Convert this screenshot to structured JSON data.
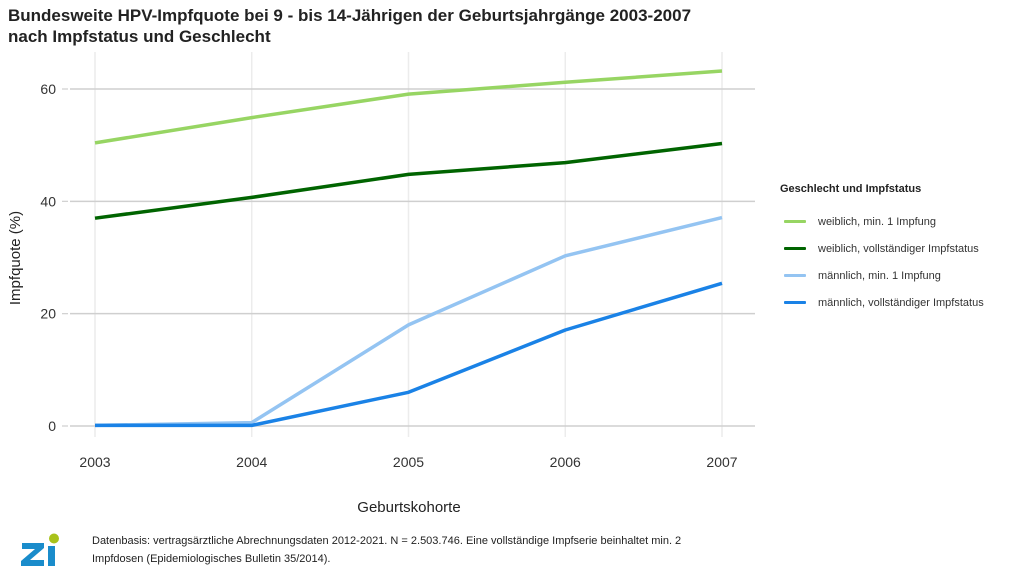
{
  "title": {
    "line1": "Bundesweite HPV-Impfquote bei 9 - bis 14-Jährigen der Geburtsjahrgänge 2003-2007",
    "line2": "nach Impfstatus und Geschlecht"
  },
  "legend": {
    "title": "Geschlecht und Impfstatus"
  },
  "footer": {
    "text": "Datenbasis: vertragsärztliche Abrechnungsdaten 2012-2021. N = 2.503.746. Eine vollständige Impfserie beinhaltet min. 2 Impfdosen (Epidemiologisches Bulletin 35/2014)."
  },
  "logo": {
    "name": "zi-logo",
    "text": "Zi",
    "colors": {
      "letters": "#1a8ccb",
      "dot": "#a9c21b"
    }
  },
  "chart_data": {
    "type": "line",
    "title": "Bundesweite HPV-Impfquote bei 9 - bis 14-Jährigen der Geburtsjahrgänge 2003-2007 nach Impfstatus und Geschlecht",
    "xlabel": "Geburtskohorte",
    "ylabel": "Impfquote (%)",
    "x": [
      2003,
      2004,
      2005,
      2006,
      2007
    ],
    "x_tick_labels": [
      "2003",
      "2004",
      "2005",
      "2006",
      "2007"
    ],
    "y_ticks": [
      0,
      20,
      40,
      60
    ],
    "y_tick_labels": [
      "0",
      "20",
      "40",
      "60"
    ],
    "xlim": [
      2002.85,
      2007.2
    ],
    "ylim": [
      -2,
      66
    ],
    "grid": true,
    "legend_position": "right",
    "series": [
      {
        "name": "weiblich, min. 1 Impfung",
        "color": "#97d563",
        "values": [
          50.4,
          54.9,
          59.1,
          61.2,
          63.2
        ]
      },
      {
        "name": "weiblich, vollständiger Impfstatus",
        "color": "#006400",
        "values": [
          37.0,
          40.7,
          44.8,
          46.9,
          50.3
        ]
      },
      {
        "name": "männlich, min. 1 Impfung",
        "color": "#94c4f2",
        "values": [
          0.1,
          0.6,
          18.0,
          30.3,
          37.1
        ]
      },
      {
        "name": "männlich, vollständiger Impfstatus",
        "color": "#1a82e6",
        "values": [
          0.1,
          0.1,
          6.0,
          17.1,
          25.4
        ]
      }
    ]
  }
}
